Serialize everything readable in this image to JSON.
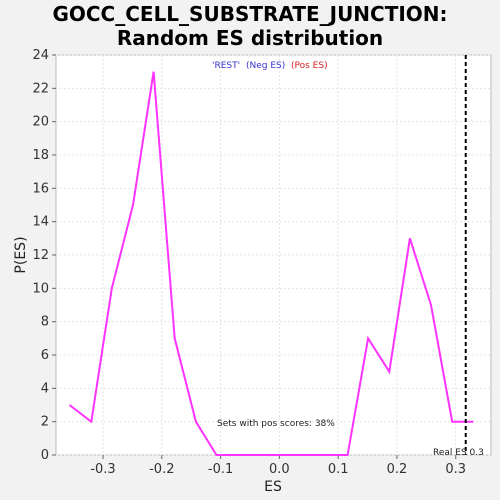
{
  "chart_data": {
    "type": "line",
    "title_line1": "GOCC_CELL_SUBSTRATE_JUNCTION:",
    "title_line2": "Random ES distribution",
    "xlabel": "ES",
    "ylabel": "P(ES)",
    "xlim": [
      -0.38,
      0.36
    ],
    "ylim": [
      0,
      24
    ],
    "x_ticks": [
      -0.3,
      -0.2,
      -0.1,
      0.0,
      0.1,
      0.2,
      0.3
    ],
    "x_tick_labels": [
      "-0.3",
      "-0.2",
      "-0.1",
      "0.0",
      "0.1",
      "0.2",
      "0.3"
    ],
    "y_ticks": [
      0,
      2,
      4,
      6,
      8,
      10,
      12,
      14,
      16,
      18,
      20,
      22,
      24
    ],
    "y_tick_labels": [
      "0",
      "2",
      "4",
      "6",
      "8",
      "10",
      "12",
      "14",
      "16",
      "18",
      "20",
      "22",
      "24"
    ],
    "grid": true,
    "legend": {
      "placement": "top-center",
      "rest_label": "'REST'",
      "neg_label": "(Neg ES)",
      "pos_label": "(Pos ES)",
      "neg_color": "#3333cc",
      "pos_color": "#dd2222"
    },
    "series": [
      {
        "color": "#ff33ff",
        "x": [
          -0.357,
          -0.32,
          -0.285,
          -0.249,
          -0.214,
          -0.178,
          -0.142,
          -0.107,
          -0.071,
          -0.035,
          0.0,
          0.045,
          0.081,
          0.116,
          0.151,
          0.187,
          0.222,
          0.258,
          0.294,
          0.33
        ],
        "y": [
          3,
          2,
          10,
          15,
          23,
          7,
          2,
          0,
          0,
          0,
          0,
          0,
          0,
          0,
          7,
          5,
          13,
          9,
          2,
          2
        ]
      }
    ],
    "real_es": {
      "x": 0.317,
      "label": "Real ES 0.3",
      "color": "#000000"
    },
    "annotation": "Sets with pos scores: 38%"
  }
}
